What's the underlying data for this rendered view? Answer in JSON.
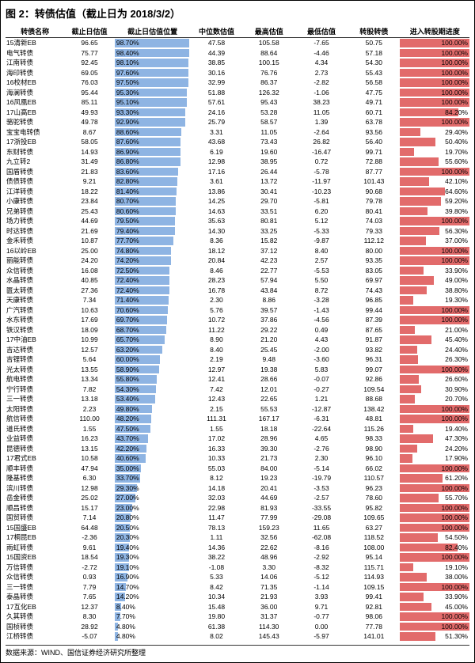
{
  "title": "图 2：转债估值（截止日为 2018/3/2）",
  "source": "数据来源：WIND、国信证券经济研究所整理",
  "columns": [
    "转债名称",
    "截止日估值",
    "截止日估值位置",
    "中位数估值",
    "最高估值",
    "最低估值",
    "转股转债",
    "进入转股期进度"
  ],
  "blue_color": "#8eb4e3",
  "red_color": "#e26b6b",
  "blue_max": 100,
  "red_max": 100,
  "rows": [
    [
      "15清新EB",
      "96.65",
      "98.70%",
      "47.58",
      "105.58",
      "-7.65",
      "50.75",
      "100.00%"
    ],
    [
      "电气转债",
      "75.77",
      "98.40%",
      "44.39",
      "88.64",
      "-4.46",
      "57.18",
      "100.00%"
    ],
    [
      "江南转债",
      "92.45",
      "98.10%",
      "38.85",
      "100.15",
      "4.34",
      "54.30",
      "100.00%"
    ],
    [
      "海印转债",
      "69.05",
      "97.60%",
      "30.16",
      "76.76",
      "2.73",
      "55.43",
      "100.00%"
    ],
    [
      "16校材EB",
      "76.03",
      "97.50%",
      "32.99",
      "86.37",
      "-2.82",
      "56.58",
      "100.00%"
    ],
    [
      "海澜转债",
      "95.44",
      "95.30%",
      "51.88",
      "126.32",
      "-1.06",
      "47.75",
      "100.00%"
    ],
    [
      "16凤凰EB",
      "85.11",
      "95.10%",
      "57.61",
      "95.43",
      "38.23",
      "49.71",
      "100.00%"
    ],
    [
      "17山高EB",
      "49.93",
      "93.30%",
      "24.16",
      "53.28",
      "11.05",
      "60.71",
      "84.20%"
    ],
    [
      "骆驼转债",
      "49.78",
      "92.90%",
      "25.79",
      "58.57",
      "1.39",
      "63.78",
      "100.00%"
    ],
    [
      "宝宝电转债",
      "8.67",
      "88.60%",
      "3.31",
      "11.05",
      "-2.64",
      "93.56",
      "29.40%"
    ],
    [
      "17浙投EB",
      "58.05",
      "87.60%",
      "43.68",
      "73.43",
      "26.82",
      "56.40",
      "50.40%"
    ],
    [
      "东财转债",
      "14.93",
      "86.90%",
      "6.19",
      "19.60",
      "-16.47",
      "99.71",
      "19.70%"
    ],
    [
      "九立转2",
      "31.49",
      "86.80%",
      "12.98",
      "38.95",
      "0.72",
      "72.88",
      "55.60%"
    ],
    [
      "国盾转债",
      "21.83",
      "83.60%",
      "17.16",
      "26.44",
      "-5.78",
      "87.77",
      "100.00%"
    ],
    [
      "债债转债",
      "9.21",
      "82.80%",
      "3.61",
      "13.72",
      "-11.97",
      "101.43",
      "42.10%"
    ],
    [
      "江洋转债",
      "18.22",
      "81.40%",
      "13.86",
      "30.41",
      "-10.23",
      "90.68",
      "64.60%"
    ],
    [
      "小康转债",
      "23.84",
      "80.70%",
      "14.25",
      "29.70",
      "-5.81",
      "79.78",
      "59.20%"
    ],
    [
      "兄弟转债",
      "25.43",
      "80.60%",
      "14.63",
      "33.51",
      "6.20",
      "80.41",
      "39.80%"
    ],
    [
      "场力转债",
      "44.69",
      "79.50%",
      "35.63",
      "80.81",
      "5.12",
      "74.03",
      "100.00%"
    ],
    [
      "时达转债",
      "21.69",
      "79.40%",
      "14.30",
      "33.25",
      "-5.33",
      "79.33",
      "56.30%"
    ],
    [
      "金禾转债",
      "10.87",
      "77.70%",
      "8.36",
      "15.82",
      "-9.87",
      "112.12",
      "37.00%"
    ],
    [
      "16以岭EB",
      "25.00",
      "74.80%",
      "18.12",
      "37.12",
      "8.40",
      "80.00",
      "100.00%"
    ],
    [
      "丽能转债",
      "24.20",
      "74.20%",
      "20.84",
      "42.23",
      "2.57",
      "93.35",
      "100.00%"
    ],
    [
      "众信转债",
      "16.08",
      "72.50%",
      "8.46",
      "22.77",
      "-5.53",
      "83.05",
      "33.90%"
    ],
    [
      "水晶转债",
      "40.85",
      "72.40%",
      "28.23",
      "57.94",
      "5.50",
      "69.97",
      "49.00%"
    ],
    [
      "匮太转债",
      "27.36",
      "72.40%",
      "16.78",
      "43.84",
      "8.72",
      "74.43",
      "38.80%"
    ],
    [
      "天康转债",
      "7.34",
      "71.40%",
      "2.30",
      "8.86",
      "-3.28",
      "96.85",
      "19.30%"
    ],
    [
      "广汽转债",
      "10.63",
      "70.60%",
      "5.76",
      "39.57",
      "-1.43",
      "99.44",
      "100.00%"
    ],
    [
      "水东转债",
      "17.69",
      "69.70%",
      "10.72",
      "37.86",
      "-4.56",
      "87.39",
      "100.00%"
    ],
    [
      "铁汉转债",
      "18.09",
      "68.70%",
      "11.22",
      "29.22",
      "0.49",
      "87.65",
      "21.00%"
    ],
    [
      "17中油EB",
      "10.99",
      "65.70%",
      "8.90",
      "21.20",
      "4.43",
      "91.87",
      "45.40%"
    ],
    [
      "吉达转债",
      "12.57",
      "63.20%",
      "8.40",
      "25.45",
      "-2.00",
      "93.82",
      "24.40%"
    ],
    [
      "吉锂转债",
      "5.64",
      "60.00%",
      "2.19",
      "9.48",
      "-3.60",
      "96.31",
      "26.30%"
    ],
    [
      "光太转债",
      "13.55",
      "58.90%",
      "12.97",
      "19.38",
      "5.83",
      "99.07",
      "100.00%"
    ],
    [
      "航电转债",
      "13.34",
      "55.80%",
      "12.41",
      "28.66",
      "-0.07",
      "92.86",
      "26.60%"
    ],
    [
      "宁行转债",
      "7.82",
      "54.30%",
      "7.42",
      "12.01",
      "-0.27",
      "109.54",
      "30.90%"
    ],
    [
      "三一转债",
      "13.18",
      "53.40%",
      "12.43",
      "22.65",
      "1.21",
      "88.68",
      "20.70%"
    ],
    [
      "太阳转债",
      "2.23",
      "49.80%",
      "2.15",
      "55.53",
      "-12.87",
      "138.42",
      "100.00%"
    ],
    [
      "航信转债",
      "110.00",
      "48.20%",
      "111.31",
      "167.17",
      "-6.31",
      "48.81",
      "100.00%"
    ],
    [
      "道氏转债",
      "1.55",
      "47.50%",
      "1.55",
      "18.18",
      "-22.64",
      "115.26",
      "19.40%"
    ],
    [
      "业益转债",
      "16.23",
      "43.70%",
      "17.02",
      "28.96",
      "4.65",
      "98.33",
      "47.30%"
    ],
    [
      "昆德转债",
      "13.15",
      "42.20%",
      "16.33",
      "39.30",
      "-2.76",
      "98.90",
      "24.20%"
    ],
    [
      "17君式EB",
      "10.58",
      "40.60%",
      "10.33",
      "21.73",
      "2.30",
      "96.10",
      "17.90%"
    ],
    [
      "顺丰转债",
      "47.94",
      "35.00%",
      "55.03",
      "84.00",
      "-5.14",
      "66.02",
      "100.00%"
    ],
    [
      "隆基转债",
      "6.30",
      "33.70%",
      "8.12",
      "19.23",
      "-19.79",
      "110.57",
      "61.20%"
    ],
    [
      "滨川转债",
      "12.98",
      "29.30%",
      "14.18",
      "20.41",
      "-3.53",
      "96.23",
      "100.00%"
    ],
    [
      "岳金转债",
      "25.02",
      "27.00%",
      "32.03",
      "44.69",
      "-2.57",
      "78.60",
      "55.70%"
    ],
    [
      "顺昌转债",
      "15.17",
      "23.00%",
      "22.98",
      "81.93",
      "-33.55",
      "95.82",
      "100.00%"
    ],
    [
      "国贸转债",
      "7.14",
      "20.80%",
      "11.47",
      "77.99",
      "-29.08",
      "109.65",
      "100.00%"
    ],
    [
      "15国盛EB",
      "64.48",
      "20.50%",
      "78.13",
      "159.23",
      "11.65",
      "63.27",
      "100.00%"
    ],
    [
      "17桐昆EB",
      "-2.36",
      "20.30%",
      "1.11",
      "32.56",
      "-62.08",
      "118.52",
      "54.50%"
    ],
    [
      "雨虹转债",
      "9.61",
      "19.40%",
      "14.36",
      "22.62",
      "-8.16",
      "108.00",
      "82.40%"
    ],
    [
      "15国资EB",
      "18.54",
      "19.30%",
      "38.22",
      "48.96",
      "-2.92",
      "95.14",
      "100.00%"
    ],
    [
      "万信转债",
      "-2.72",
      "19.10%",
      "-1.08",
      "3.30",
      "-8.32",
      "115.71",
      "19.10%"
    ],
    [
      "众信转债",
      "0.93",
      "16.90%",
      "5.33",
      "14.06",
      "-5.12",
      "114.93",
      "38.00%"
    ],
    [
      "三一转债",
      "7.79",
      "14.70%",
      "8.42",
      "71.35",
      "-1.14",
      "109.15",
      "100.00%"
    ],
    [
      "泰晶转债",
      "7.65",
      "14.20%",
      "10.34",
      "21.93",
      "3.93",
      "99.41",
      "33.90%"
    ],
    [
      "17互化EB",
      "12.37",
      "8.40%",
      "15.48",
      "36.00",
      "9.71",
      "92.81",
      "45.00%"
    ],
    [
      "久其转债",
      "8.30",
      "7.70%",
      "19.80",
      "31.37",
      "-0.77",
      "98.06",
      "100.00%"
    ],
    [
      "国桢转债",
      "28.92",
      "4.80%",
      "61.38",
      "114.30",
      "0.00",
      "77.78",
      "100.00%"
    ],
    [
      "江桥转债",
      "-5.07",
      "4.80%",
      "8.02",
      "145.43",
      "-5.97",
      "141.01",
      "51.30%"
    ]
  ]
}
